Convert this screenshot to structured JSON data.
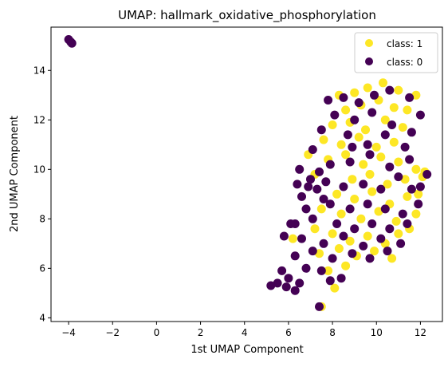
{
  "chart_data": {
    "type": "scatter",
    "title": "UMAP: hallmark_oxidative_phosphorylation",
    "xlabel": "1st UMAP Component",
    "ylabel": "2nd UMAP Component",
    "xlim": [
      -4.8,
      13.0
    ],
    "ylim": [
      3.85,
      15.75
    ],
    "xticks": [
      -4,
      -2,
      0,
      2,
      4,
      6,
      8,
      10,
      12
    ],
    "yticks": [
      4,
      6,
      8,
      10,
      12,
      14
    ],
    "grid": false,
    "legend_position": "top-right",
    "series": [
      {
        "name": "class: 1",
        "color": "#fde725",
        "points": [
          [
            8.3,
            13.0
          ],
          [
            9.0,
            13.1
          ],
          [
            9.6,
            13.3
          ],
          [
            10.3,
            13.5
          ],
          [
            11.0,
            13.2
          ],
          [
            11.8,
            13.0
          ],
          [
            8.6,
            12.4
          ],
          [
            9.3,
            12.6
          ],
          [
            10.1,
            12.8
          ],
          [
            10.8,
            12.5
          ],
          [
            11.4,
            12.4
          ],
          [
            8.0,
            11.8
          ],
          [
            8.8,
            11.9
          ],
          [
            9.5,
            11.6
          ],
          [
            10.4,
            12.0
          ],
          [
            11.2,
            11.7
          ],
          [
            7.6,
            11.2
          ],
          [
            8.4,
            11.0
          ],
          [
            9.2,
            11.3
          ],
          [
            10.0,
            10.9
          ],
          [
            10.8,
            11.1
          ],
          [
            7.8,
            10.4
          ],
          [
            8.6,
            10.6
          ],
          [
            9.4,
            10.2
          ],
          [
            10.2,
            10.5
          ],
          [
            11.0,
            10.3
          ],
          [
            11.8,
            10.0
          ],
          [
            12.1,
            9.7
          ],
          [
            7.2,
            9.8
          ],
          [
            8.9,
            9.6
          ],
          [
            9.7,
            9.8
          ],
          [
            10.5,
            9.4
          ],
          [
            11.3,
            9.6
          ],
          [
            11.9,
            9.0
          ],
          [
            8.2,
            9.0
          ],
          [
            9.0,
            8.8
          ],
          [
            9.8,
            9.1
          ],
          [
            10.6,
            8.6
          ],
          [
            11.4,
            8.9
          ],
          [
            11.8,
            8.2
          ],
          [
            7.5,
            8.4
          ],
          [
            8.4,
            8.2
          ],
          [
            9.3,
            8.0
          ],
          [
            10.1,
            8.3
          ],
          [
            10.9,
            7.9
          ],
          [
            11.5,
            7.6
          ],
          [
            6.2,
            7.2
          ],
          [
            7.2,
            7.6
          ],
          [
            8.0,
            7.4
          ],
          [
            8.8,
            7.1
          ],
          [
            9.6,
            7.3
          ],
          [
            10.4,
            7.0
          ],
          [
            11.0,
            7.4
          ],
          [
            7.4,
            6.6
          ],
          [
            8.3,
            6.8
          ],
          [
            9.1,
            6.5
          ],
          [
            9.9,
            6.7
          ],
          [
            10.7,
            6.4
          ],
          [
            7.8,
            5.9
          ],
          [
            8.6,
            6.1
          ],
          [
            8.1,
            5.2
          ],
          [
            7.5,
            4.45
          ],
          [
            12.2,
            9.9
          ],
          [
            6.9,
            10.6
          ]
        ]
      },
      {
        "name": "class: 0",
        "color": "#440154",
        "points": [
          [
            -4.0,
            15.25
          ],
          [
            -3.9,
            15.15
          ],
          [
            -3.85,
            15.1
          ],
          [
            7.8,
            12.8
          ],
          [
            8.5,
            12.9
          ],
          [
            9.2,
            12.7
          ],
          [
            9.9,
            13.0
          ],
          [
            10.6,
            13.2
          ],
          [
            11.5,
            12.9
          ],
          [
            12.0,
            12.2
          ],
          [
            8.1,
            12.2
          ],
          [
            9.0,
            12.0
          ],
          [
            9.8,
            12.3
          ],
          [
            10.7,
            11.8
          ],
          [
            11.6,
            11.5
          ],
          [
            7.5,
            11.6
          ],
          [
            8.7,
            11.4
          ],
          [
            9.6,
            11.0
          ],
          [
            10.4,
            11.4
          ],
          [
            11.3,
            10.9
          ],
          [
            7.1,
            10.8
          ],
          [
            7.9,
            10.2
          ],
          [
            8.8,
            10.3
          ],
          [
            9.7,
            10.6
          ],
          [
            10.6,
            10.1
          ],
          [
            11.5,
            10.4
          ],
          [
            12.0,
            9.3
          ],
          [
            6.5,
            10.0
          ],
          [
            7.0,
            9.6
          ],
          [
            7.3,
            9.2
          ],
          [
            6.6,
            8.9
          ],
          [
            7.6,
            8.8
          ],
          [
            6.9,
            9.3
          ],
          [
            7.7,
            9.5
          ],
          [
            6.4,
            9.4
          ],
          [
            7.4,
            9.9
          ],
          [
            8.5,
            9.3
          ],
          [
            9.4,
            9.4
          ],
          [
            10.2,
            9.2
          ],
          [
            11.0,
            9.7
          ],
          [
            11.6,
            9.2
          ],
          [
            6.8,
            8.4
          ],
          [
            7.9,
            8.6
          ],
          [
            8.8,
            8.4
          ],
          [
            9.6,
            8.6
          ],
          [
            10.4,
            8.4
          ],
          [
            11.2,
            8.2
          ],
          [
            11.9,
            8.6
          ],
          [
            6.3,
            7.8
          ],
          [
            7.1,
            8.0
          ],
          [
            8.2,
            7.8
          ],
          [
            9.0,
            7.6
          ],
          [
            9.8,
            7.8
          ],
          [
            10.6,
            7.6
          ],
          [
            11.4,
            7.8
          ],
          [
            5.8,
            7.3
          ],
          [
            6.6,
            7.2
          ],
          [
            7.6,
            7.0
          ],
          [
            8.5,
            7.3
          ],
          [
            9.4,
            6.9
          ],
          [
            10.2,
            7.2
          ],
          [
            11.1,
            7.0
          ],
          [
            6.3,
            6.5
          ],
          [
            7.1,
            6.7
          ],
          [
            8.0,
            6.4
          ],
          [
            8.9,
            6.6
          ],
          [
            9.7,
            6.4
          ],
          [
            10.5,
            6.7
          ],
          [
            6.8,
            6.0
          ],
          [
            7.5,
            5.9
          ],
          [
            8.4,
            5.6
          ],
          [
            7.9,
            5.5
          ],
          [
            5.7,
            5.9
          ],
          [
            6.0,
            5.6
          ],
          [
            5.5,
            5.4
          ],
          [
            5.2,
            5.3
          ],
          [
            5.9,
            5.25
          ],
          [
            6.3,
            5.1
          ],
          [
            6.5,
            5.4
          ],
          [
            7.4,
            4.45
          ],
          [
            8.9,
            10.9
          ],
          [
            6.1,
            7.8
          ],
          [
            12.3,
            9.8
          ]
        ]
      }
    ]
  }
}
